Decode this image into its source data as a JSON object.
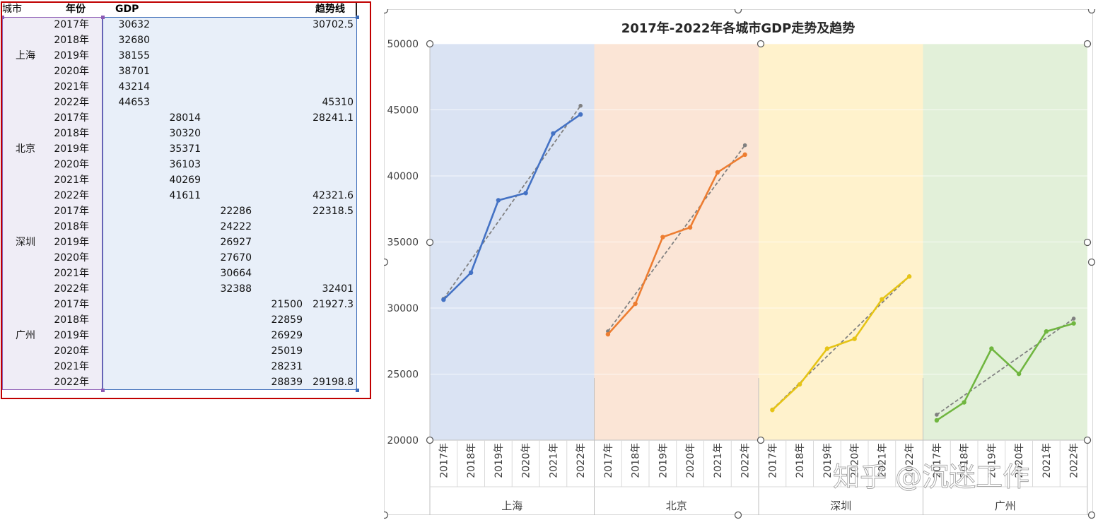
{
  "sheet": {
    "headers": {
      "city": "城市",
      "year": "年份",
      "gdp": "GDP",
      "trend": "趋势线"
    },
    "cities": [
      {
        "name": "上海",
        "rows": [
          {
            "year": "2017年",
            "gdp": "30632",
            "trend": "30702.5"
          },
          {
            "year": "2018年",
            "gdp": "32680",
            "trend": ""
          },
          {
            "year": "2019年",
            "gdp": "38155",
            "trend": ""
          },
          {
            "year": "2020年",
            "gdp": "38701",
            "trend": ""
          },
          {
            "year": "2021年",
            "gdp": "43214",
            "trend": ""
          },
          {
            "year": "2022年",
            "gdp": "44653",
            "trend": "45310"
          }
        ]
      },
      {
        "name": "北京",
        "rows": [
          {
            "year": "2017年",
            "gdp": "28014",
            "trend": "28241.1"
          },
          {
            "year": "2018年",
            "gdp": "30320",
            "trend": ""
          },
          {
            "year": "2019年",
            "gdp": "35371",
            "trend": ""
          },
          {
            "year": "2020年",
            "gdp": "36103",
            "trend": ""
          },
          {
            "year": "2021年",
            "gdp": "40269",
            "trend": ""
          },
          {
            "year": "2022年",
            "gdp": "41611",
            "trend": "42321.6"
          }
        ]
      },
      {
        "name": "深圳",
        "rows": [
          {
            "year": "2017年",
            "gdp": "22286",
            "trend": "22318.5"
          },
          {
            "year": "2018年",
            "gdp": "24222",
            "trend": ""
          },
          {
            "year": "2019年",
            "gdp": "26927",
            "trend": ""
          },
          {
            "year": "2020年",
            "gdp": "27670",
            "trend": ""
          },
          {
            "year": "2021年",
            "gdp": "30664",
            "trend": ""
          },
          {
            "year": "2022年",
            "gdp": "32388",
            "trend": "32401"
          }
        ]
      },
      {
        "name": "广州",
        "rows": [
          {
            "year": "2017年",
            "gdp": "21500",
            "trend": "21927.3"
          },
          {
            "year": "2018年",
            "gdp": "22859",
            "trend": ""
          },
          {
            "year": "2019年",
            "gdp": "26929",
            "trend": ""
          },
          {
            "year": "2020年",
            "gdp": "25019",
            "trend": ""
          },
          {
            "year": "2021年",
            "gdp": "28231",
            "trend": ""
          },
          {
            "year": "2022年",
            "gdp": "28839",
            "trend": "29198.8"
          }
        ]
      }
    ]
  },
  "watermark": "知乎 @沉迷工作",
  "chart_data": {
    "type": "line",
    "title": "2017年-2022年各城市GDP走势及趋势",
    "ylim": [
      20000,
      50000
    ],
    "yticks": [
      20000,
      25000,
      30000,
      35000,
      40000,
      45000,
      50000
    ],
    "grid": true,
    "years": [
      "2017年",
      "2018年",
      "2019年",
      "2020年",
      "2021年",
      "2022年"
    ],
    "groups": [
      {
        "name": "上海",
        "values": [
          30632,
          32680,
          38155,
          38701,
          43214,
          44653
        ],
        "trend": [
          30702.5,
          33624,
          36546,
          39467,
          42389,
          45310
        ],
        "line_color": "#4472c4",
        "band_color": "#dae3f3"
      },
      {
        "name": "北京",
        "values": [
          28014,
          30320,
          35371,
          36103,
          40269,
          41611
        ],
        "trend": [
          28241.1,
          31057,
          33873,
          36690,
          39506,
          42321.6
        ],
        "line_color": "#ed7d31",
        "band_color": "#fbe5d6"
      },
      {
        "name": "深圳",
        "values": [
          22286,
          24222,
          26927,
          27670,
          30664,
          32388
        ],
        "trend": [
          22318.5,
          24335,
          26352,
          28368,
          30385,
          32401
        ],
        "line_color": "#e6c416",
        "band_color": "#fff2cc"
      },
      {
        "name": "广州",
        "values": [
          21500,
          22859,
          26929,
          25019,
          28231,
          28839
        ],
        "trend": [
          21927.3,
          23382,
          24836,
          26290,
          27745,
          29198.8
        ],
        "line_color": "#70b640",
        "band_color": "#e2f0d9"
      }
    ],
    "trend_color": "#808080"
  }
}
